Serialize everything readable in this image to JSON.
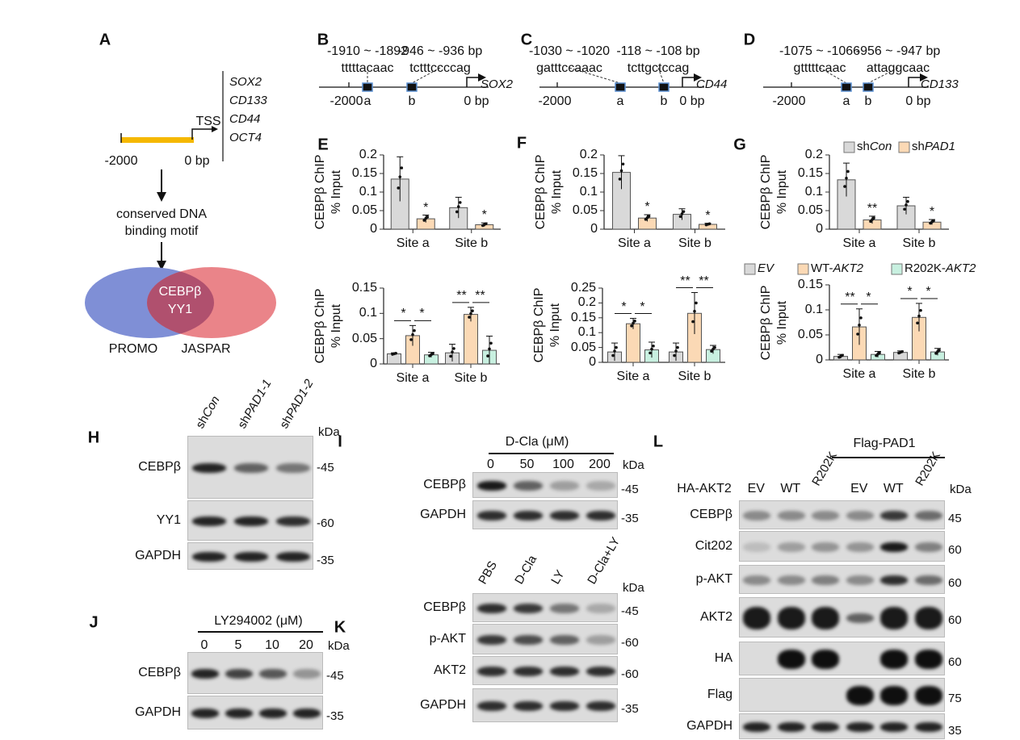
{
  "panel_labels": {
    "A": "A",
    "B": "B",
    "C": "C",
    "D": "D",
    "E": "E",
    "F": "F",
    "G": "G",
    "H": "H",
    "I": "I",
    "J": "J",
    "K": "K",
    "L": "L"
  },
  "panel_a": {
    "tss": "TSS",
    "genes": [
      "SOX2",
      "CD133",
      "CD44",
      "OCT4"
    ],
    "start": "-2000",
    "end": "0 bp",
    "motif_line1": "conserved DNA",
    "motif_line2": "binding motif",
    "overlap_line1": "CEBPβ",
    "overlap_line2": "YY1",
    "venn_left": "PROMO",
    "venn_right": "JASPAR",
    "colors": {
      "promoter": "#f5b800",
      "promo": "#7f8fd6",
      "jaspar": "#e8777c",
      "overlap": "#b0506e"
    }
  },
  "promoters": [
    {
      "gene": "SOX2",
      "site_a_range": "-1910 ~ -1892",
      "site_a_seq": "tttttacaac",
      "site_b_range": "-946 ~ -936 bp",
      "site_b_seq": "tctttccccag",
      "start": "-2000",
      "end": "0 bp",
      "a": "a",
      "b": "b"
    },
    {
      "gene": "CD44",
      "site_a_range": "-1030 ~ -1020",
      "site_a_seq": "gatttccaaac",
      "site_b_range": "-118 ~ -108 bp",
      "site_b_seq": "tcttgctccag",
      "start": "-2000",
      "end": "0 bp",
      "a": "a",
      "b": "b"
    },
    {
      "gene": "CD133",
      "site_a_range": "-1075 ~ -1066",
      "site_a_seq": "gtttttcaac",
      "site_b_range": "-956 ~ -947 bp",
      "site_b_seq": "attaggcaac",
      "start": "-2000",
      "end": "0 bp",
      "a": "a",
      "b": "b"
    }
  ],
  "legends": {
    "sh": [
      {
        "prefix": "sh",
        "italic": "Con",
        "color": "#d9d9d9"
      },
      {
        "prefix": "sh",
        "italic": "PAD1",
        "color": "#fbd9b5"
      }
    ],
    "akt": [
      {
        "prefix": "",
        "italic": "EV",
        "suffix": "",
        "color": "#d9d9d9"
      },
      {
        "prefix": "WT-",
        "italic": "AKT2",
        "suffix": "",
        "color": "#fbd9b5"
      },
      {
        "prefix": "R202K-",
        "italic": "AKT2",
        "suffix": "",
        "color": "#c8f0e0"
      }
    ]
  },
  "chart_data": [
    {
      "id": "E-top",
      "type": "bar",
      "ylabel": "CEBPβ ChIP",
      "ylabel2": "% Input",
      "categories": [
        "Site a",
        "Site b"
      ],
      "ylim": [
        0,
        0.2
      ],
      "yticks": [
        "0",
        "0.05",
        "0.1",
        "0.15",
        "0.2"
      ],
      "ytick_values": [
        0,
        0.05,
        0.1,
        0.15,
        0.2
      ],
      "series": [
        {
          "name": "shCon",
          "color": "#d9d9d9",
          "values": [
            0.135,
            0.058
          ],
          "err": [
            0.06,
            0.028
          ]
        },
        {
          "name": "shPAD1",
          "color": "#fbd9b5",
          "values": [
            0.028,
            0.012
          ],
          "err": [
            0.01,
            0.005
          ]
        }
      ],
      "significance": [
        [
          "*"
        ],
        [
          "*"
        ]
      ],
      "sig_mode": "single"
    },
    {
      "id": "E-bottom",
      "type": "bar",
      "ylabel": "CEBPβ ChIP",
      "ylabel2": "% Input",
      "categories": [
        "Site a",
        "Site b"
      ],
      "ylim": [
        0,
        0.15
      ],
      "yticks": [
        "0",
        "0.05",
        "0.1",
        "0.15"
      ],
      "ytick_values": [
        0,
        0.05,
        0.1,
        0.15
      ],
      "series": [
        {
          "name": "EV",
          "color": "#d9d9d9",
          "values": [
            0.02,
            0.022
          ],
          "err": [
            0.002,
            0.017
          ]
        },
        {
          "name": "WT-AKT2",
          "color": "#fbd9b5",
          "values": [
            0.056,
            0.098
          ],
          "err": [
            0.02,
            0.014
          ]
        },
        {
          "name": "R202K-AKT2",
          "color": "#c8f0e0",
          "values": [
            0.018,
            0.027
          ],
          "err": [
            0.005,
            0.028
          ]
        }
      ],
      "significance": [
        [
          "*",
          "*"
        ],
        [
          "**",
          "**"
        ]
      ],
      "sig_mode": "pair"
    },
    {
      "id": "F-top",
      "type": "bar",
      "ylabel": "CEBPβ ChIP",
      "ylabel2": "% Input",
      "categories": [
        "Site a",
        "Site b"
      ],
      "ylim": [
        0,
        0.2
      ],
      "yticks": [
        "0",
        "0.05",
        "0.1",
        "0.15",
        "0.2"
      ],
      "ytick_values": [
        0,
        0.05,
        0.1,
        0.15,
        0.2
      ],
      "series": [
        {
          "name": "shCon",
          "color": "#d9d9d9",
          "values": [
            0.153,
            0.04
          ],
          "err": [
            0.045,
            0.015
          ]
        },
        {
          "name": "shPAD1",
          "color": "#fbd9b5",
          "values": [
            0.03,
            0.013
          ],
          "err": [
            0.009,
            0.003
          ]
        }
      ],
      "significance": [
        [
          "*"
        ],
        [
          "*"
        ]
      ],
      "sig_mode": "single"
    },
    {
      "id": "F-bottom",
      "type": "bar",
      "ylabel": "CEBPβ ChIP",
      "ylabel2": "% Input",
      "categories": [
        "Site a",
        "Site b"
      ],
      "ylim": [
        0,
        0.25
      ],
      "yticks": [
        "0",
        "0.05",
        "0.1",
        "0.15",
        "0.2",
        "0.25"
      ],
      "ytick_values": [
        0,
        0.05,
        0.1,
        0.15,
        0.2,
        0.25
      ],
      "series": [
        {
          "name": "EV",
          "color": "#d9d9d9",
          "values": [
            0.035,
            0.035
          ],
          "err": [
            0.03,
            0.03
          ]
        },
        {
          "name": "WT-AKT2",
          "color": "#fbd9b5",
          "values": [
            0.13,
            0.165
          ],
          "err": [
            0.018,
            0.07
          ]
        },
        {
          "name": "R202K-AKT2",
          "color": "#c8f0e0",
          "values": [
            0.042,
            0.043
          ],
          "err": [
            0.026,
            0.014
          ]
        }
      ],
      "significance": [
        [
          "*",
          "*"
        ],
        [
          "**",
          "**"
        ]
      ],
      "sig_mode": "pair"
    },
    {
      "id": "G-top",
      "type": "bar",
      "ylabel": "CEBPβ ChIP",
      "ylabel2": "% Input",
      "categories": [
        "Site a",
        "Site b"
      ],
      "ylim": [
        0,
        0.2
      ],
      "yticks": [
        "0",
        "0.05",
        "0.1",
        "0.15",
        "0.2"
      ],
      "ytick_values": [
        0,
        0.05,
        0.1,
        0.15,
        0.2
      ],
      "legend": "top",
      "series": [
        {
          "name": "shCon",
          "color": "#d9d9d9",
          "values": [
            0.133,
            0.063
          ],
          "err": [
            0.045,
            0.023
          ]
        },
        {
          "name": "shPAD1",
          "color": "#fbd9b5",
          "values": [
            0.025,
            0.019
          ],
          "err": [
            0.01,
            0.007
          ]
        }
      ],
      "significance": [
        [
          "**"
        ],
        [
          "*"
        ]
      ],
      "sig_mode": "single"
    },
    {
      "id": "G-bottom",
      "type": "bar",
      "ylabel": "CEBPβ ChIP",
      "ylabel2": "% Input",
      "categories": [
        "Site a",
        "Site b"
      ],
      "ylim": [
        0,
        0.15
      ],
      "yticks": [
        "0",
        "0.05",
        "0.1",
        "0.15"
      ],
      "ytick_values": [
        0,
        0.05,
        0.1,
        0.15
      ],
      "legend": "top",
      "series": [
        {
          "name": "EV",
          "color": "#d9d9d9",
          "values": [
            0.007,
            0.015
          ],
          "err": [
            0.004,
            0.003
          ]
        },
        {
          "name": "WT-AKT2",
          "color": "#fbd9b5",
          "values": [
            0.066,
            0.085
          ],
          "err": [
            0.036,
            0.028
          ]
        },
        {
          "name": "R202K-AKT2",
          "color": "#c8f0e0",
          "values": [
            0.011,
            0.016
          ],
          "err": [
            0.006,
            0.007
          ]
        }
      ],
      "significance": [
        [
          "**",
          "*"
        ],
        [
          "*",
          "*"
        ]
      ],
      "sig_mode": "pair"
    }
  ],
  "blots": {
    "H": {
      "columns": [
        {
          "p": "sh",
          "i": "Con"
        },
        {
          "p": "sh",
          "i": "PAD1-1"
        },
        {
          "p": "sh",
          "i": "PAD1-2"
        }
      ],
      "kda": "kDa",
      "rows": [
        {
          "label": "CEBPβ",
          "marker": "-45"
        },
        {
          "label": "YY1",
          "marker": "-60"
        },
        {
          "label": "GAPDH",
          "marker": "-35"
        }
      ]
    },
    "I": {
      "title": "D-Cla (μM)",
      "columns": [
        "0",
        "50",
        "100",
        "200"
      ],
      "kda": "kDa",
      "rows": [
        {
          "label": "CEBPβ",
          "marker": "-45"
        },
        {
          "label": "GAPDH",
          "marker": "-35"
        }
      ]
    },
    "J": {
      "title": "LY294002 (μM)",
      "columns": [
        "0",
        "5",
        "10",
        "20"
      ],
      "kda": "kDa",
      "rows": [
        {
          "label": "CEBPβ",
          "marker": "-45"
        },
        {
          "label": "GAPDH",
          "marker": "-35"
        }
      ]
    },
    "K": {
      "columns": [
        "PBS",
        "D-Cla",
        "LY",
        "D-Cla+LY"
      ],
      "kda": "kDa",
      "rows": [
        {
          "label": "CEBPβ",
          "marker": "-45"
        },
        {
          "label": "p-AKT",
          "marker": "-60"
        },
        {
          "label": "AKT2",
          "marker": "-60"
        },
        {
          "label": "GAPDH",
          "marker": "-35"
        }
      ]
    },
    "L": {
      "group": "Flag-PAD1",
      "row_header": "HA-AKT2",
      "columns": [
        "EV",
        "WT",
        "R202K",
        "EV",
        "WT",
        "R202K"
      ],
      "kda": "kDa",
      "rows": [
        {
          "label": "CEBPβ",
          "marker": "45"
        },
        {
          "label": "Cit202",
          "marker": "60"
        },
        {
          "label": "p-AKT",
          "marker": "60"
        },
        {
          "label": "AKT2",
          "marker": "60"
        },
        {
          "label": "HA",
          "marker": "60"
        },
        {
          "label": "Flag",
          "marker": "75"
        },
        {
          "label": "GAPDH",
          "marker": "35"
        }
      ]
    }
  }
}
